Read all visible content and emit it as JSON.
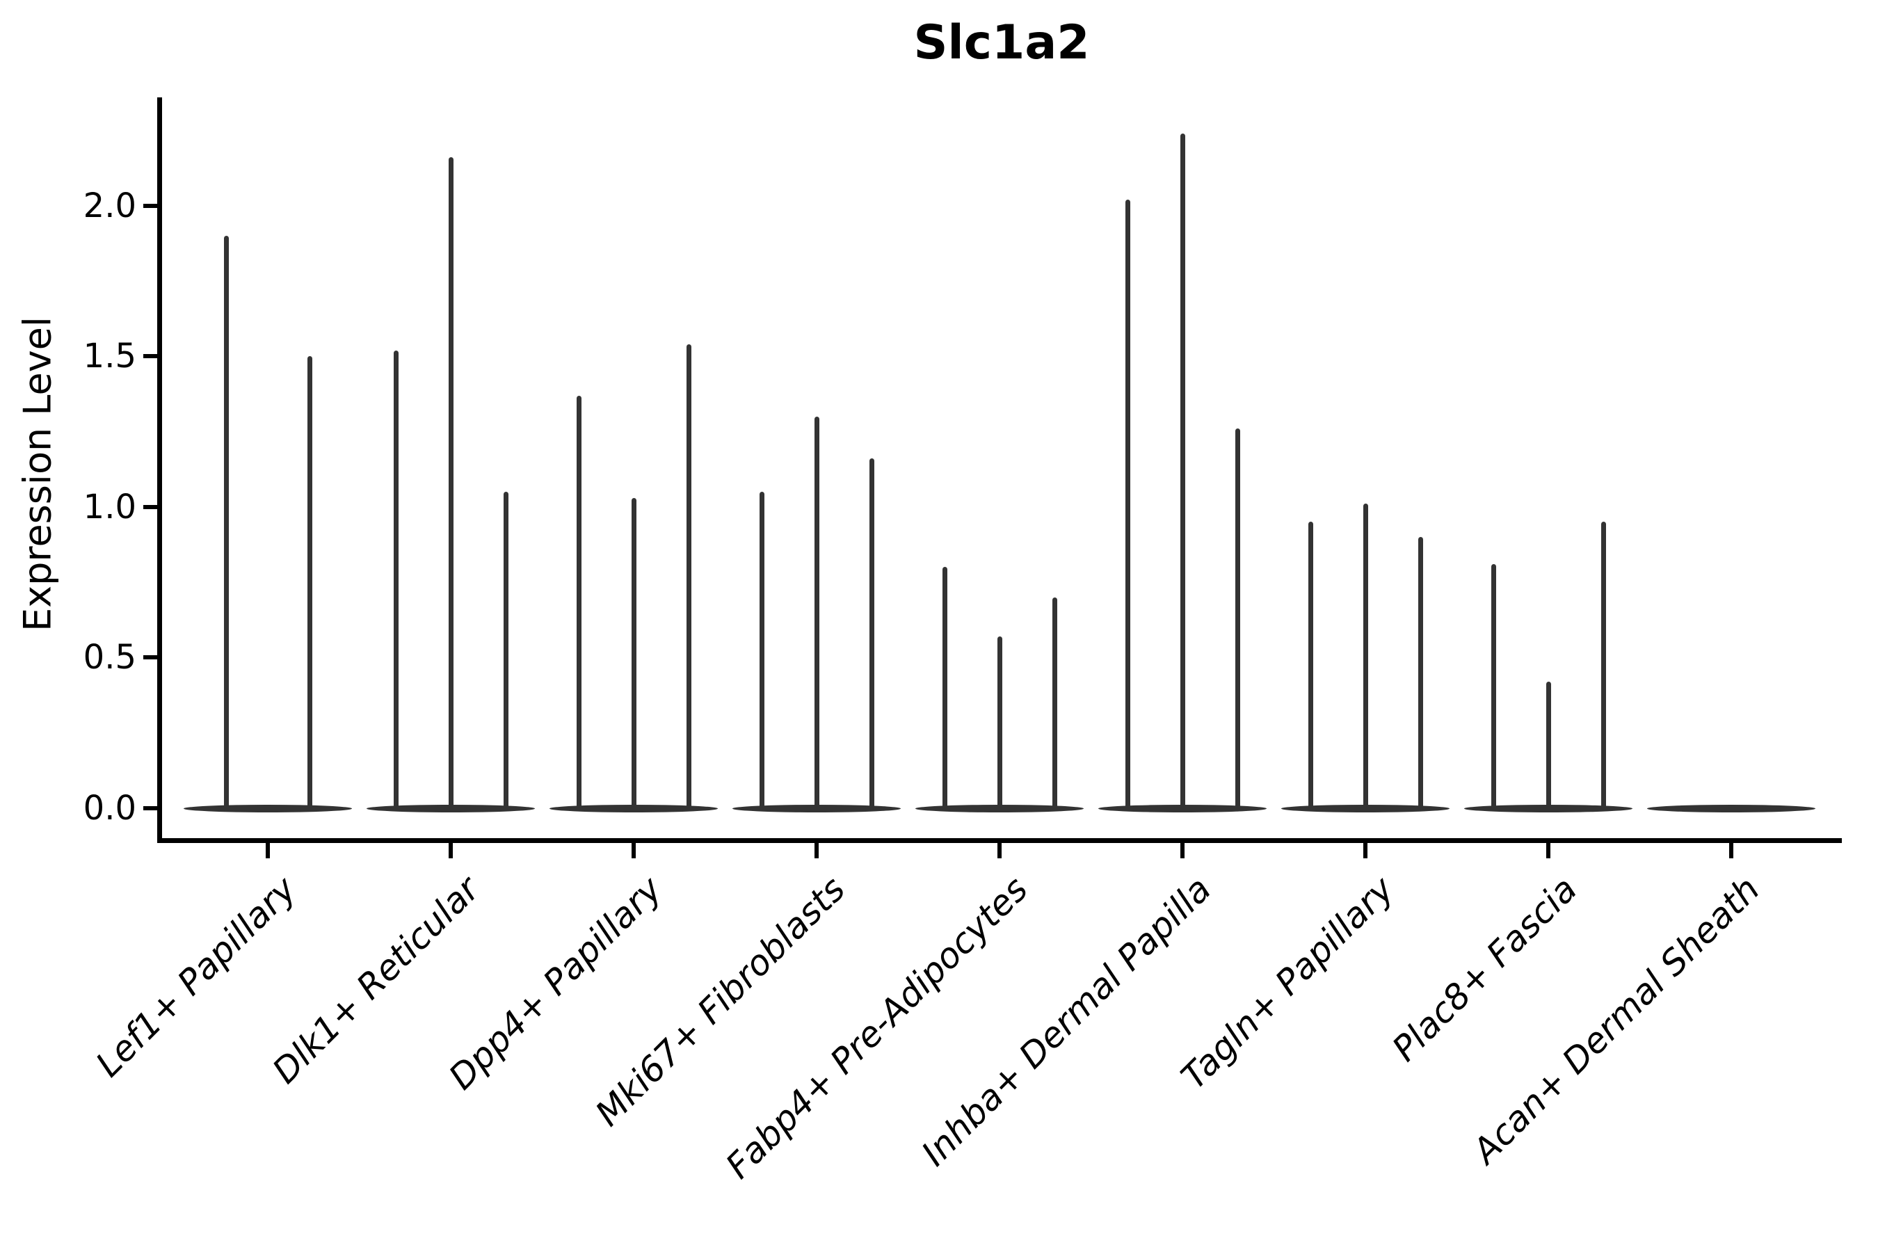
{
  "title": "Slc1a2",
  "ylabel": "Expression Level",
  "chart_data": {
    "type": "violin",
    "title": "Slc1a2",
    "xlabel": "",
    "ylabel": "Expression Level",
    "ylim": [
      0,
      2.36
    ],
    "yticks": [
      0.0,
      0.5,
      1.0,
      1.5,
      2.0
    ],
    "ytick_labels": [
      "0.0",
      "0.5",
      "1.0",
      "1.5",
      "2.0"
    ],
    "grid": false,
    "legend": "none",
    "note": "needle-shaped violins: most cells at 0 expression (flat base), thin spike up to max expression; one spike per violin, 1-3 violins per category",
    "categories": [
      {
        "label": "Lef1+ Papillary",
        "violin_max_values": [
          1.9,
          1.5
        ]
      },
      {
        "label": "Dlk1+ Reticular",
        "violin_max_values": [
          1.52,
          2.16,
          1.05
        ]
      },
      {
        "label": "Dpp4+ Papillary",
        "violin_max_values": [
          1.37,
          1.03,
          1.54
        ]
      },
      {
        "label": "Mki67+ Fibroblasts",
        "violin_max_values": [
          1.05,
          1.3,
          1.16
        ]
      },
      {
        "label": "Fabp4+ Pre-Adipocytes",
        "violin_max_values": [
          0.8,
          0.57,
          0.7
        ]
      },
      {
        "label": "Inhba+ Dermal Papilla",
        "violin_max_values": [
          2.02,
          2.24,
          1.26
        ]
      },
      {
        "label": "Tagln+ Papillary",
        "violin_max_values": [
          0.95,
          1.01,
          0.9
        ]
      },
      {
        "label": "Plac8+ Fascia",
        "violin_max_values": [
          0.81,
          0.42,
          0.95
        ]
      },
      {
        "label": "Acan+ Dermal Sheath",
        "violin_max_values": []
      }
    ],
    "colors": {
      "violin": "#333333",
      "axes": "#000000",
      "text": "#000000",
      "background": "#ffffff"
    }
  }
}
